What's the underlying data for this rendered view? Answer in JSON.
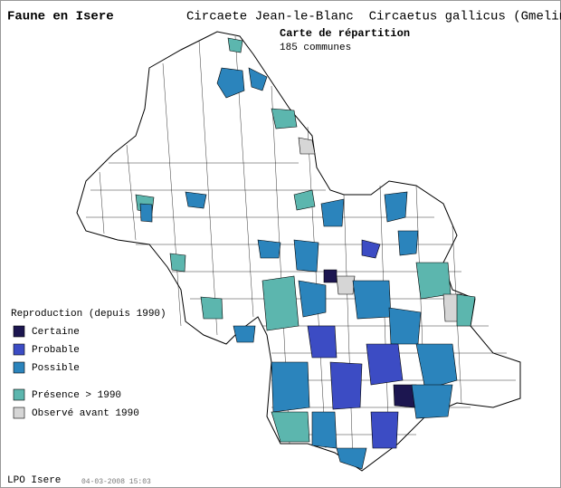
{
  "header": {
    "site": "Faune en Isere",
    "species": "Circaete Jean-le-Blanc  Circaetus gallicus (Gmelin)",
    "map_title": "Carte de répartition",
    "count": "185 communes"
  },
  "legend": {
    "title": "Reproduction (depuis 1990)",
    "items": [
      {
        "label": "Certaine",
        "color": "#1c1650"
      },
      {
        "label": "Probable",
        "color": "#3c4cc4"
      },
      {
        "label": "Possible",
        "color": "#2b84bc"
      },
      {
        "label": "Présence > 1990",
        "color": "#5cb6ae"
      },
      {
        "label": "Observé avant 1990",
        "color": "#d6d6d6"
      }
    ]
  },
  "footer": {
    "source": "LPO Isere",
    "date": "04-03-2008 15:03"
  }
}
